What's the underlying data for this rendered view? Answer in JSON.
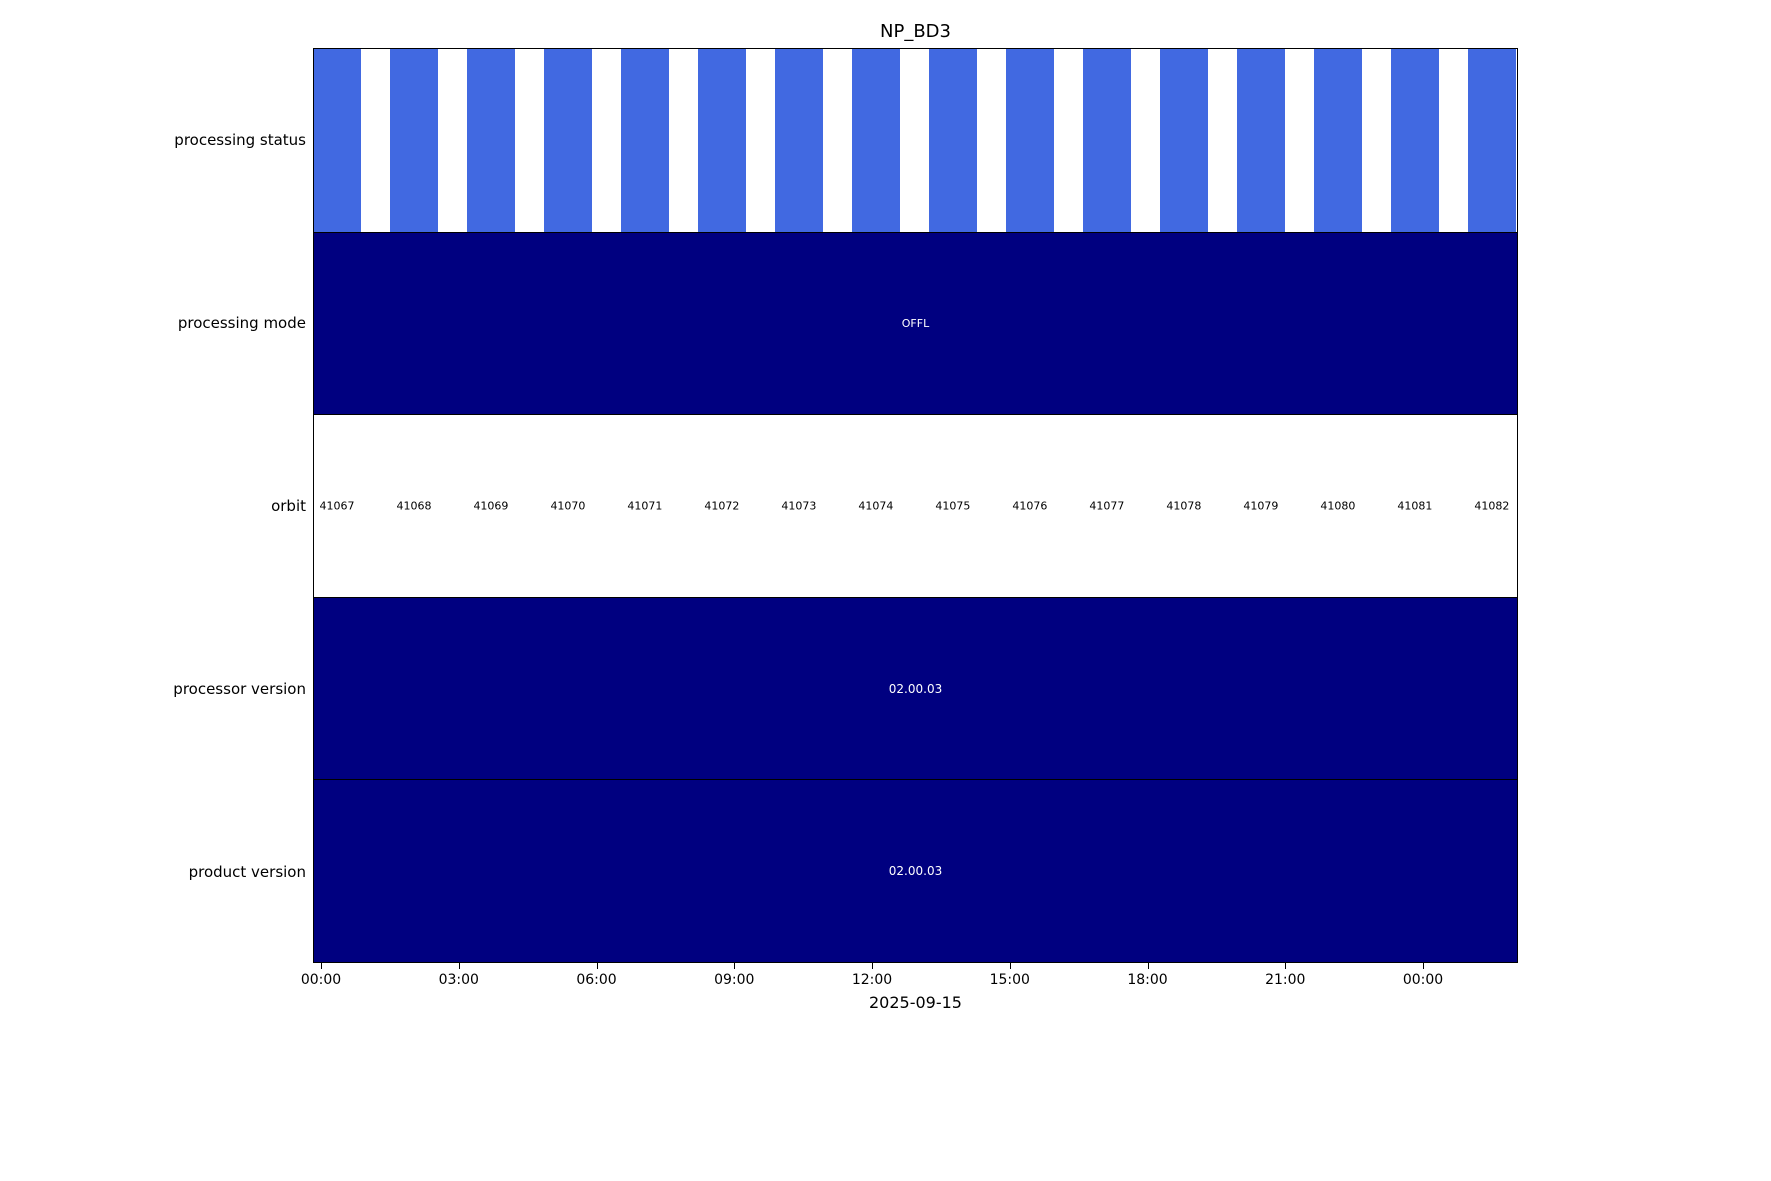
{
  "title": "NP_BD3",
  "xlabel": "2025-09-15",
  "rows": [
    {
      "label": "processing status"
    },
    {
      "label": "processing mode",
      "value": "OFFL"
    },
    {
      "label": "orbit"
    },
    {
      "label": "processor version",
      "value": "02.00.03"
    },
    {
      "label": "product version",
      "value": "02.00.03"
    }
  ],
  "orbits": [
    "41067",
    "41068",
    "41069",
    "41070",
    "41071",
    "41072",
    "41073",
    "41074",
    "41075",
    "41076",
    "41077",
    "41078",
    "41079",
    "41080",
    "41081",
    "41082"
  ],
  "x_ticks": [
    "00:00",
    "03:00",
    "06:00",
    "09:00",
    "12:00",
    "15:00",
    "18:00",
    "21:00",
    "00:00"
  ],
  "colors": {
    "status_bar": "#4169e1",
    "solid_bar": "#000080",
    "bar_text": "#ffffff",
    "axis_text": "#000000",
    "background": "#ffffff"
  },
  "chart_data": {
    "type": "bar",
    "subtype": "satellite-product-status-timeline",
    "title": "NP_BD3",
    "xlabel": "2025-09-15",
    "grid": false,
    "legend": null,
    "x_axis": {
      "tick_labels": [
        "00:00",
        "03:00",
        "06:00",
        "09:00",
        "12:00",
        "15:00",
        "18:00",
        "21:00",
        "00:00"
      ],
      "tick_interval_hours": 3,
      "range_note": "from 2025-09-15 00:00 to shortly after next-day 00:00"
    },
    "categories": [
      "processing status",
      "processing mode",
      "orbit",
      "processor version",
      "product version"
    ],
    "rows": [
      {
        "label": "processing status",
        "type": "striped-bars",
        "bar_count": 16,
        "color": "#4169e1",
        "note": "one filled bar per orbit, roughly 60% duty cycle, evenly spaced across the day"
      },
      {
        "label": "processing mode",
        "type": "solid-bar",
        "value": "OFFL",
        "color": "#000080",
        "span": "full day"
      },
      {
        "label": "orbit",
        "type": "labels",
        "values": [
          41067,
          41068,
          41069,
          41070,
          41071,
          41072,
          41073,
          41074,
          41075,
          41076,
          41077,
          41078,
          41079,
          41080,
          41081,
          41082
        ]
      },
      {
        "label": "processor version",
        "type": "solid-bar",
        "value": "02.00.03",
        "color": "#000080",
        "span": "full day"
      },
      {
        "label": "product version",
        "type": "solid-bar",
        "value": "02.00.03",
        "color": "#000080",
        "span": "full day"
      }
    ]
  }
}
